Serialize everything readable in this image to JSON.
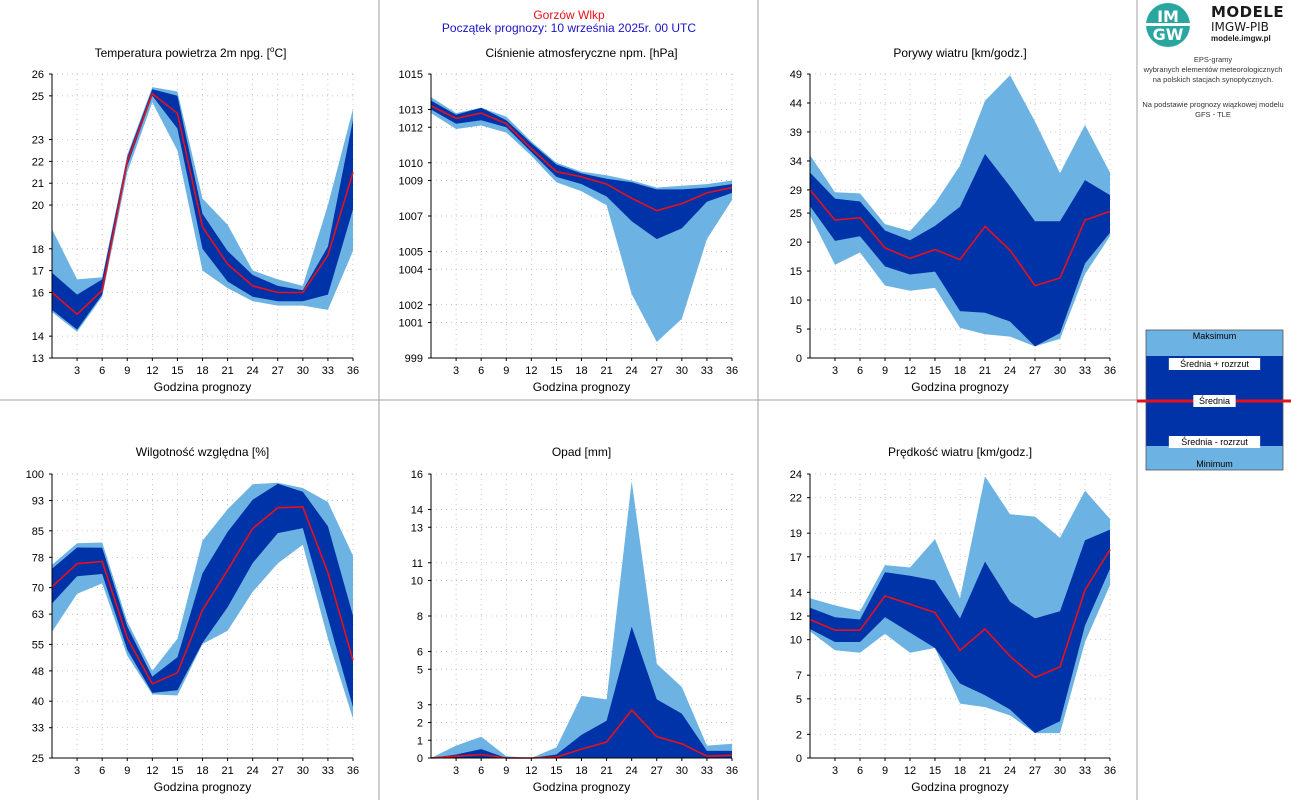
{
  "header": {
    "station": "Gorzów Wlkp",
    "start": "Początek prognozy: 10 września 2025r. 00 UTC"
  },
  "brand": {
    "logo_top": "IM",
    "logo_bottom": "GW",
    "name": "MODELE",
    "org": "IMGW-PIB",
    "site": "modele.imgw.pl"
  },
  "side_text": {
    "lines1": [
      "EPS-gramy",
      "wybranych elementów meteorologicznych",
      "na polskich stacjach  synoptycznych."
    ],
    "lines2": [
      "Na podstawie prognozy wiązkowej modelu",
      "GFS - TLE"
    ]
  },
  "legend": {
    "max": "Maksimum",
    "mean_plus": "Średnia + rozrzut",
    "mean": "Średnia",
    "mean_minus": "Średnia - rozrzut",
    "min": "Minimum"
  },
  "colors": {
    "light": "#6cb3e4",
    "dark": "#0033a8",
    "mean": "#e8101a",
    "border": "#a0a0a0",
    "grid": "#b0b0b0"
  },
  "chart_data": [
    {
      "type": "area",
      "title": "Temperatura powietrza 2m npg. [°C]",
      "xlabel": "Godzina prognozy",
      "x": [
        0,
        3,
        6,
        9,
        12,
        15,
        18,
        21,
        24,
        27,
        30,
        33,
        36
      ],
      "x_ticks": [
        3,
        6,
        9,
        12,
        15,
        18,
        21,
        24,
        27,
        30,
        33,
        36
      ],
      "ylim": [
        13,
        26
      ],
      "y_ticks": [
        13,
        14,
        16,
        17,
        18,
        20,
        21,
        22,
        23,
        25,
        26
      ],
      "series": [
        {
          "name": "Maksimum",
          "values": [
            18.9,
            16.6,
            16.7,
            22.3,
            25.4,
            25.2,
            20.3,
            19.1,
            17.0,
            16.6,
            16.3,
            20.0,
            24.4
          ]
        },
        {
          "name": "Średnia + rozrzut",
          "values": [
            16.9,
            15.9,
            16.6,
            22.2,
            25.3,
            25.0,
            19.6,
            17.9,
            16.8,
            16.3,
            16.1,
            18.1,
            23.9
          ]
        },
        {
          "name": "Średnia",
          "values": [
            16.0,
            15.0,
            16.1,
            22.0,
            25.1,
            24.2,
            19.0,
            17.3,
            16.3,
            16.0,
            16.0,
            17.7,
            21.5
          ]
        },
        {
          "name": "Średnia - rozrzut",
          "values": [
            15.2,
            14.3,
            15.9,
            21.8,
            25.0,
            23.5,
            18.0,
            16.5,
            15.8,
            15.6,
            15.6,
            15.9,
            19.8
          ]
        },
        {
          "name": "Minimum",
          "values": [
            15.1,
            14.2,
            15.8,
            21.5,
            24.7,
            22.5,
            17.0,
            16.2,
            15.6,
            15.4,
            15.4,
            15.2,
            17.9
          ]
        }
      ]
    },
    {
      "type": "area",
      "title": "Ciśnienie atmosferyczne npm. [hPa]",
      "xlabel": "Godzina prognozy",
      "x": [
        0,
        3,
        6,
        9,
        12,
        15,
        18,
        21,
        24,
        27,
        30,
        33,
        36
      ],
      "x_ticks": [
        3,
        6,
        9,
        12,
        15,
        18,
        21,
        24,
        27,
        30,
        33,
        36
      ],
      "ylim": [
        999,
        1015
      ],
      "y_ticks": [
        999,
        1001,
        1002,
        1004,
        1005,
        1007,
        1009,
        1010,
        1012,
        1013,
        1015
      ],
      "series": [
        {
          "name": "Maksimum",
          "values": [
            1013.7,
            1012.8,
            1013.1,
            1012.6,
            1011.2,
            1010.0,
            1009.5,
            1009.3,
            1009.0,
            1008.6,
            1008.7,
            1008.8,
            1009.0
          ]
        },
        {
          "name": "Średnia + rozrzut",
          "values": [
            1013.5,
            1012.7,
            1013.1,
            1012.4,
            1011.1,
            1009.9,
            1009.4,
            1009.1,
            1008.9,
            1008.5,
            1008.5,
            1008.6,
            1008.8
          ]
        },
        {
          "name": "Średnia",
          "values": [
            1013.2,
            1012.5,
            1012.8,
            1012.2,
            1010.8,
            1009.5,
            1009.2,
            1008.8,
            1008.0,
            1007.3,
            1007.7,
            1008.3,
            1008.6
          ]
        },
        {
          "name": "Średnia - rozrzut",
          "values": [
            1013.0,
            1012.2,
            1012.4,
            1012.0,
            1010.6,
            1009.2,
            1008.8,
            1008.1,
            1006.7,
            1005.7,
            1006.3,
            1007.8,
            1008.3
          ]
        },
        {
          "name": "Minimum",
          "values": [
            1012.8,
            1011.9,
            1012.1,
            1011.7,
            1010.4,
            1008.9,
            1008.4,
            1007.6,
            1002.6,
            999.9,
            1001.2,
            1005.7,
            1007.9
          ]
        }
      ]
    },
    {
      "type": "area",
      "title": "Porywy wiatru [km/godz.]",
      "xlabel": "Godzina prognozy",
      "x": [
        0,
        3,
        6,
        9,
        12,
        15,
        18,
        21,
        24,
        27,
        30,
        33,
        36
      ],
      "x_ticks": [
        3,
        6,
        9,
        12,
        15,
        18,
        21,
        24,
        27,
        30,
        33,
        36
      ],
      "ylim": [
        0,
        49
      ],
      "y_ticks": [
        0,
        5,
        10,
        15,
        20,
        25,
        29,
        34,
        39,
        44,
        49
      ],
      "series": [
        {
          "name": "Maksimum",
          "values": [
            35,
            28.6,
            28.4,
            23.1,
            21.9,
            26.7,
            33.2,
            44.4,
            48.8,
            40.8,
            31.9,
            40.2,
            32.0
          ]
        },
        {
          "name": "Średnia + rozrzut",
          "values": [
            32.0,
            27.5,
            27.0,
            22.0,
            20.3,
            22.8,
            26.1,
            35.2,
            29.6,
            23.6,
            23.6,
            30.7,
            28.1
          ]
        },
        {
          "name": "Średnia",
          "values": [
            29.0,
            23.8,
            24.2,
            19.0,
            17.2,
            18.7,
            17.0,
            22.7,
            18.6,
            12.5,
            13.8,
            23.8,
            25.3
          ]
        },
        {
          "name": "Średnia - rozrzut",
          "values": [
            26.2,
            20.2,
            21.0,
            15.8,
            14.4,
            14.9,
            8.1,
            7.8,
            6.3,
            2.0,
            4.3,
            16.3,
            21.6
          ]
        },
        {
          "name": "Minimum",
          "values": [
            24.6,
            16.1,
            18.2,
            12.5,
            11.6,
            12.1,
            5.2,
            4.1,
            3.7,
            2.0,
            3.3,
            14.5,
            21.0
          ]
        }
      ]
    },
    {
      "type": "area",
      "title": "Wilgotność względna [%]",
      "xlabel": "Godzina prognozy",
      "x": [
        0,
        3,
        6,
        9,
        12,
        15,
        18,
        21,
        24,
        27,
        30,
        33,
        36
      ],
      "x_ticks": [
        3,
        6,
        9,
        12,
        15,
        18,
        21,
        24,
        27,
        30,
        33,
        36
      ],
      "ylim": [
        25,
        100
      ],
      "y_ticks": [
        25,
        33,
        40,
        48,
        55,
        63,
        70,
        78,
        85,
        93,
        100
      ],
      "series": [
        {
          "name": "Maksimum",
          "values": [
            76,
            81.7,
            81.9,
            61.0,
            48.0,
            56.5,
            82.4,
            90.7,
            97.3,
            97.7,
            96.3,
            92.6,
            78.4
          ]
        },
        {
          "name": "Średnia + rozrzut",
          "values": [
            75,
            80.6,
            80.5,
            59.7,
            46.5,
            51.6,
            73.8,
            84.7,
            93.2,
            97.4,
            95.3,
            86.2,
            62.6
          ]
        },
        {
          "name": "Średnia",
          "values": [
            70.2,
            76.3,
            76.9,
            56.7,
            44.6,
            47.5,
            64.1,
            74.6,
            85.6,
            91.1,
            91.3,
            74.0,
            50.8
          ]
        },
        {
          "name": "Średnia - rozrzut",
          "values": [
            65.8,
            73.0,
            73.6,
            53.6,
            42.2,
            42.9,
            55.4,
            64.8,
            76.5,
            84.4,
            85.7,
            62.0,
            38.4
          ]
        },
        {
          "name": "Minimum",
          "values": [
            58.3,
            68.4,
            71.1,
            52.0,
            41.8,
            41.5,
            55.1,
            58.6,
            68.9,
            76.4,
            81.3,
            56.5,
            35.4
          ]
        }
      ]
    },
    {
      "type": "area",
      "title": "Opad [mm]",
      "xlabel": "Godzina prognozy",
      "x": [
        0,
        3,
        6,
        9,
        12,
        15,
        18,
        21,
        24,
        27,
        30,
        33,
        36
      ],
      "x_ticks": [
        3,
        6,
        9,
        12,
        15,
        18,
        21,
        24,
        27,
        30,
        33,
        36
      ],
      "ylim": [
        0,
        16
      ],
      "y_ticks": [
        0,
        1,
        2,
        3,
        5,
        6,
        8,
        10,
        11,
        13,
        14,
        16
      ],
      "series": [
        {
          "name": "Maksimum",
          "values": [
            0.0,
            0.7,
            1.2,
            0.1,
            0.0,
            0.6,
            3.5,
            3.3,
            15.6,
            5.3,
            4.0,
            0.7,
            0.8
          ]
        },
        {
          "name": "Średnia + rozrzut",
          "values": [
            0.0,
            0.2,
            0.5,
            0.0,
            0.0,
            0.2,
            1.3,
            2.1,
            7.4,
            3.3,
            2.5,
            0.4,
            0.4
          ]
        },
        {
          "name": "Średnia",
          "values": [
            0.0,
            0.1,
            0.2,
            0.0,
            0.0,
            0.05,
            0.5,
            0.9,
            2.7,
            1.2,
            0.8,
            0.1,
            0.15
          ]
        },
        {
          "name": "Średnia - rozrzut",
          "values": [
            0,
            0,
            0,
            0,
            0,
            0,
            0,
            0,
            0,
            0,
            0,
            0,
            0
          ]
        },
        {
          "name": "Minimum",
          "values": [
            0,
            0,
            0,
            0,
            0,
            0,
            0,
            0,
            0,
            0,
            0,
            0,
            0
          ]
        }
      ]
    },
    {
      "type": "area",
      "title": "Prędkość wiatru [km/godz.]",
      "xlabel": "Godzina prognozy",
      "x": [
        0,
        3,
        6,
        9,
        12,
        15,
        18,
        21,
        24,
        27,
        30,
        33,
        36
      ],
      "x_ticks": [
        3,
        6,
        9,
        12,
        15,
        18,
        21,
        24,
        27,
        30,
        33,
        36
      ],
      "ylim": [
        0,
        24
      ],
      "y_ticks": [
        0,
        2,
        5,
        7,
        10,
        12,
        14,
        17,
        19,
        22,
        24
      ],
      "series": [
        {
          "name": "Maksimum",
          "values": [
            13.5,
            12.9,
            12.4,
            16.3,
            16.1,
            18.5,
            13.5,
            23.8,
            20.6,
            20.4,
            18.6,
            22.6,
            20.2
          ]
        },
        {
          "name": "Średnia + rozrzut",
          "values": [
            12.7,
            11.9,
            11.7,
            15.7,
            15.4,
            15.0,
            11.8,
            16.6,
            13.2,
            11.8,
            12.4,
            18.4,
            19.3
          ]
        },
        {
          "name": "Średnia",
          "values": [
            11.7,
            10.8,
            10.8,
            13.7,
            13.0,
            12.3,
            9.1,
            10.9,
            8.6,
            6.8,
            7.7,
            14.2,
            17.6
          ]
        },
        {
          "name": "Średnia - rozrzut",
          "values": [
            10.9,
            9.8,
            9.8,
            11.9,
            10.6,
            9.3,
            6.3,
            5.3,
            4.1,
            2.1,
            3.1,
            11.2,
            16.0
          ]
        },
        {
          "name": "Minimum",
          "values": [
            10.7,
            9.1,
            8.9,
            10.5,
            8.9,
            9.3,
            4.6,
            4.3,
            3.6,
            2.1,
            2.1,
            9.8,
            14.6
          ]
        }
      ]
    }
  ]
}
